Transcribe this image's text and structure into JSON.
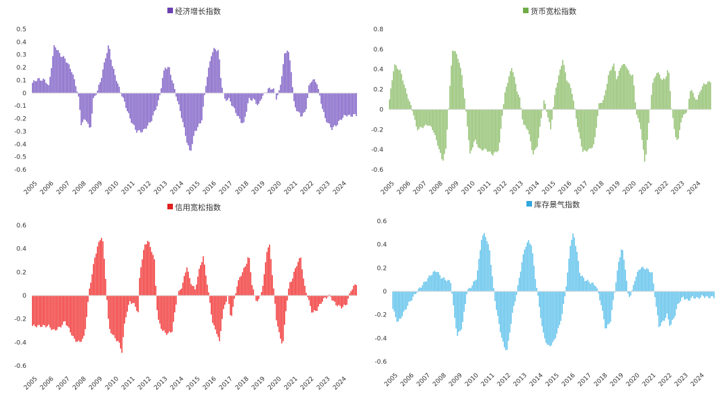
{
  "chart_data": [
    {
      "type": "bar",
      "title": "经济增长指数",
      "color": "#7B5BC4",
      "legend_marker_color": "#6A3FB0",
      "x_labels": [
        "2005",
        "2006",
        "2007",
        "2008",
        "2009",
        "2010",
        "2011",
        "2012",
        "2013",
        "2014",
        "2015",
        "2016",
        "2017",
        "2018",
        "2019",
        "2020",
        "2021",
        "2022",
        "2023",
        "2024"
      ],
      "ylim": [
        -0.6,
        0.5
      ],
      "yticks": [
        "0.5",
        "0.4",
        "0.3",
        "0.2",
        "0.1",
        "0",
        "-0.1",
        "-0.2",
        "-0.3",
        "-0.4",
        "-0.5",
        "-0.6"
      ],
      "x_range": [
        2005.0,
        2024.9
      ],
      "points": [
        [
          2005.0,
          0.08
        ],
        [
          2005.3,
          0.11
        ],
        [
          2005.8,
          0.1
        ],
        [
          2006.0,
          0.05
        ],
        [
          2006.35,
          0.38
        ],
        [
          2006.7,
          0.3
        ],
        [
          2007.0,
          0.27
        ],
        [
          2007.4,
          0.18
        ],
        [
          2007.7,
          0.05
        ],
        [
          2007.85,
          -0.05
        ],
        [
          2008.0,
          -0.24
        ],
        [
          2008.3,
          -0.2
        ],
        [
          2008.55,
          -0.3
        ],
        [
          2008.75,
          -0.05
        ],
        [
          2009.0,
          0.02
        ],
        [
          2009.2,
          0.1
        ],
        [
          2009.5,
          0.28
        ],
        [
          2009.7,
          0.38
        ],
        [
          2009.9,
          0.22
        ],
        [
          2010.3,
          0.05
        ],
        [
          2010.6,
          -0.05
        ],
        [
          2011.0,
          -0.2
        ],
        [
          2011.4,
          -0.3
        ],
        [
          2011.8,
          -0.3
        ],
        [
          2012.3,
          -0.22
        ],
        [
          2012.8,
          -0.05
        ],
        [
          2013.0,
          0.12
        ],
        [
          2013.15,
          0.2
        ],
        [
          2013.4,
          0.2
        ],
        [
          2013.7,
          0.05
        ],
        [
          2013.9,
          -0.05
        ],
        [
          2014.2,
          -0.2
        ],
        [
          2014.5,
          -0.38
        ],
        [
          2014.7,
          -0.47
        ],
        [
          2015.0,
          -0.3
        ],
        [
          2015.4,
          -0.22
        ],
        [
          2015.7,
          0.1
        ],
        [
          2016.0,
          0.3
        ],
        [
          2016.2,
          0.35
        ],
        [
          2016.45,
          0.33
        ],
        [
          2016.6,
          0.1
        ],
        [
          2016.8,
          -0.05
        ],
        [
          2017.1,
          -0.05
        ],
        [
          2017.5,
          -0.15
        ],
        [
          2017.8,
          -0.22
        ],
        [
          2018.0,
          -0.24
        ],
        [
          2018.3,
          -0.05
        ],
        [
          2018.6,
          -0.05
        ],
        [
          2018.9,
          -0.1
        ],
        [
          2019.1,
          -0.03
        ],
        [
          2019.5,
          0.03
        ],
        [
          2019.8,
          0.04
        ],
        [
          2020.0,
          -0.04
        ],
        [
          2020.2,
          0.02
        ],
        [
          2020.5,
          0.3
        ],
        [
          2020.7,
          0.35
        ],
        [
          2020.9,
          0.2
        ],
        [
          2021.1,
          -0.1
        ],
        [
          2021.5,
          -0.18
        ],
        [
          2021.8,
          -0.15
        ],
        [
          2022.0,
          0.05
        ],
        [
          2022.2,
          0.11
        ],
        [
          2022.5,
          0.08
        ],
        [
          2022.7,
          -0.05
        ],
        [
          2023.0,
          -0.2
        ],
        [
          2023.4,
          -0.28
        ],
        [
          2023.7,
          -0.25
        ],
        [
          2024.0,
          -0.2
        ],
        [
          2024.3,
          -0.17
        ],
        [
          2024.5,
          -0.18
        ],
        [
          2024.9,
          -0.17
        ]
      ]
    },
    {
      "type": "bar",
      "title": "货币宽松指数",
      "color": "#8EBE6B",
      "legend_marker_color": "#70AD47",
      "x_labels": [
        "2005",
        "2006",
        "2007",
        "2008",
        "2009",
        "2010",
        "2011",
        "2012",
        "2013",
        "2014",
        "2015",
        "2016",
        "2017",
        "2018",
        "2019",
        "2020",
        "2021",
        "2022",
        "2023",
        "2024"
      ],
      "ylim": [
        -0.6,
        0.8
      ],
      "yticks": [
        "0.8",
        "0.6",
        "0.4",
        "0.2",
        "0",
        "-0.2",
        "-0.4",
        "-0.6"
      ],
      "x_range": [
        2005.0,
        2024.9
      ],
      "points": [
        [
          2005.0,
          0.1
        ],
        [
          2005.3,
          0.45
        ],
        [
          2005.7,
          0.38
        ],
        [
          2006.0,
          0.2
        ],
        [
          2006.3,
          0.05
        ],
        [
          2006.5,
          -0.05
        ],
        [
          2006.7,
          -0.2
        ],
        [
          2007.0,
          -0.18
        ],
        [
          2007.4,
          -0.15
        ],
        [
          2007.7,
          -0.2
        ],
        [
          2008.0,
          -0.35
        ],
        [
          2008.3,
          -0.52
        ],
        [
          2008.5,
          -0.4
        ],
        [
          2008.7,
          0.1
        ],
        [
          2008.9,
          0.6
        ],
        [
          2009.2,
          0.55
        ],
        [
          2009.5,
          0.35
        ],
        [
          2009.8,
          -0.1
        ],
        [
          2010.0,
          -0.45
        ],
        [
          2010.3,
          -0.3
        ],
        [
          2010.6,
          -0.4
        ],
        [
          2011.0,
          -0.4
        ],
        [
          2011.4,
          -0.45
        ],
        [
          2011.8,
          -0.4
        ],
        [
          2012.0,
          -0.05
        ],
        [
          2012.2,
          0.2
        ],
        [
          2012.6,
          0.43
        ],
        [
          2012.9,
          0.2
        ],
        [
          2013.1,
          0.1
        ],
        [
          2013.3,
          -0.15
        ],
        [
          2013.6,
          -0.2
        ],
        [
          2013.9,
          -0.45
        ],
        [
          2014.2,
          -0.35
        ],
        [
          2014.4,
          -0.1
        ],
        [
          2014.6,
          0.1
        ],
        [
          2014.8,
          -0.05
        ],
        [
          2015.0,
          -0.2
        ],
        [
          2015.3,
          0.2
        ],
        [
          2015.6,
          0.4
        ],
        [
          2015.75,
          0.5
        ],
        [
          2016.0,
          0.3
        ],
        [
          2016.3,
          0.2
        ],
        [
          2016.5,
          0.0
        ],
        [
          2016.7,
          -0.2
        ],
        [
          2017.0,
          -0.42
        ],
        [
          2017.4,
          -0.4
        ],
        [
          2017.7,
          -0.35
        ],
        [
          2018.0,
          0.05
        ],
        [
          2018.3,
          0.1
        ],
        [
          2018.6,
          0.35
        ],
        [
          2018.9,
          0.46
        ],
        [
          2019.1,
          0.3
        ],
        [
          2019.4,
          0.45
        ],
        [
          2019.7,
          0.44
        ],
        [
          2019.9,
          0.35
        ],
        [
          2020.1,
          0.35
        ],
        [
          2020.3,
          -0.02
        ],
        [
          2020.6,
          -0.2
        ],
        [
          2020.85,
          -0.55
        ],
        [
          2021.0,
          -0.3
        ],
        [
          2021.3,
          0.25
        ],
        [
          2021.6,
          0.38
        ],
        [
          2021.9,
          0.3
        ],
        [
          2022.1,
          0.3
        ],
        [
          2022.3,
          0.42
        ],
        [
          2022.5,
          0.02
        ],
        [
          2022.7,
          -0.25
        ],
        [
          2022.9,
          -0.32
        ],
        [
          2023.1,
          -0.1
        ],
        [
          2023.3,
          -0.05
        ],
        [
          2023.5,
          0.0
        ],
        [
          2023.7,
          0.23
        ],
        [
          2023.9,
          0.12
        ],
        [
          2024.1,
          0.1
        ],
        [
          2024.3,
          0.2
        ],
        [
          2024.5,
          0.25
        ],
        [
          2024.9,
          0.28
        ]
      ]
    },
    {
      "type": "bar",
      "title": "信用宽松指数",
      "color": "#F03030",
      "legend_marker_color": "#E01F1F",
      "x_labels": [
        "2005",
        "2006",
        "2007",
        "2008",
        "2009",
        "2010",
        "2011",
        "2012",
        "2013",
        "2014",
        "2015",
        "2016",
        "2017",
        "2018",
        "2019",
        "2020",
        "2021",
        "2022",
        "2023",
        "2024"
      ],
      "ylim": [
        -0.6,
        0.6
      ],
      "yticks": [
        "0.6",
        "0.4",
        "0.2",
        "0",
        "-0.2",
        "-0.4",
        "-0.6"
      ],
      "x_range": [
        2005.0,
        2024.9
      ],
      "points": [
        [
          2006.0,
          -0.26
        ],
        [
          2006.3,
          -0.3
        ],
        [
          2006.7,
          -0.27
        ],
        [
          2007.0,
          -0.22
        ],
        [
          2007.3,
          -0.3
        ],
        [
          2007.6,
          -0.38
        ],
        [
          2007.9,
          -0.4
        ],
        [
          2008.2,
          -0.35
        ],
        [
          2008.5,
          0.05
        ],
        [
          2008.8,
          0.3
        ],
        [
          2009.0,
          0.42
        ],
        [
          2009.3,
          0.52
        ],
        [
          2009.5,
          0.15
        ],
        [
          2009.7,
          -0.28
        ],
        [
          2010.0,
          -0.35
        ],
        [
          2010.3,
          -0.4
        ],
        [
          2010.5,
          -0.48
        ],
        [
          2010.7,
          -0.2
        ],
        [
          2011.0,
          -0.05
        ],
        [
          2011.3,
          -0.08
        ],
        [
          2011.5,
          -0.15
        ],
        [
          2011.6,
          0.2
        ],
        [
          2011.9,
          0.43
        ],
        [
          2012.1,
          0.47
        ],
        [
          2012.3,
          0.4
        ],
        [
          2012.5,
          0.3
        ],
        [
          2012.7,
          -0.2
        ],
        [
          2013.0,
          -0.3
        ],
        [
          2013.3,
          -0.33
        ],
        [
          2013.6,
          -0.3
        ],
        [
          2013.9,
          0.0
        ],
        [
          2014.2,
          0.08
        ],
        [
          2014.5,
          0.25
        ],
        [
          2014.7,
          0.12
        ],
        [
          2015.0,
          0.05
        ],
        [
          2015.3,
          0.25
        ],
        [
          2015.5,
          0.33
        ],
        [
          2015.7,
          0.15
        ],
        [
          2015.9,
          -0.05
        ],
        [
          2016.1,
          -0.25
        ],
        [
          2016.3,
          -0.3
        ],
        [
          2016.5,
          -0.4
        ],
        [
          2016.7,
          -0.15
        ],
        [
          2017.0,
          0.0
        ],
        [
          2017.2,
          -0.2
        ],
        [
          2017.4,
          -0.05
        ],
        [
          2017.6,
          0.1
        ],
        [
          2017.9,
          0.2
        ],
        [
          2018.1,
          0.25
        ],
        [
          2018.3,
          0.35
        ],
        [
          2018.5,
          0.1
        ],
        [
          2018.7,
          -0.03
        ],
        [
          2018.9,
          -0.05
        ],
        [
          2019.2,
          0.1
        ],
        [
          2019.4,
          0.38
        ],
        [
          2019.6,
          0.43
        ],
        [
          2019.8,
          0.1
        ],
        [
          2020.0,
          -0.2
        ],
        [
          2020.2,
          -0.35
        ],
        [
          2020.4,
          -0.42
        ],
        [
          2020.6,
          -0.1
        ],
        [
          2020.8,
          0.1
        ],
        [
          2021.0,
          0.15
        ],
        [
          2021.2,
          0.25
        ],
        [
          2021.5,
          0.33
        ],
        [
          2021.7,
          0.1
        ],
        [
          2022.0,
          -0.05
        ],
        [
          2022.2,
          -0.15
        ],
        [
          2022.5,
          -0.12
        ],
        [
          2022.8,
          -0.05
        ],
        [
          2023.0,
          -0.02
        ],
        [
          2023.3,
          0.0
        ],
        [
          2023.5,
          -0.05
        ],
        [
          2023.7,
          -0.08
        ],
        [
          2024.0,
          -0.1
        ],
        [
          2024.3,
          -0.08
        ],
        [
          2024.6,
          0.05
        ],
        [
          2024.9,
          0.1
        ]
      ]
    },
    {
      "type": "bar",
      "title": "库存景气指数",
      "color": "#5BC0EB",
      "legend_marker_color": "#30A7DD",
      "x_labels": [
        "2005",
        "2006",
        "2007",
        "2008",
        "2009",
        "2010",
        "2011",
        "2012",
        "2013",
        "2014",
        "2015",
        "2016",
        "2017",
        "2018",
        "2019",
        "2020",
        "2021",
        "2022",
        "2023",
        "2024"
      ],
      "ylim": [
        -0.6,
        0.6
      ],
      "yticks": [
        "0.6",
        "0.4",
        "0.2",
        "0",
        "-0.2",
        "-0.4",
        "-0.6"
      ],
      "x_range": [
        2005.0,
        2024.9
      ],
      "points": [
        [
          2005.0,
          -0.15
        ],
        [
          2005.3,
          -0.27
        ],
        [
          2005.6,
          -0.2
        ],
        [
          2006.0,
          -0.1
        ],
        [
          2006.5,
          0.0
        ],
        [
          2006.8,
          0.05
        ],
        [
          2007.1,
          0.1
        ],
        [
          2007.4,
          0.15
        ],
        [
          2007.7,
          0.18
        ],
        [
          2008.0,
          0.12
        ],
        [
          2008.3,
          0.1
        ],
        [
          2008.6,
          0.08
        ],
        [
          2008.8,
          -0.2
        ],
        [
          2009.0,
          -0.38
        ],
        [
          2009.3,
          -0.3
        ],
        [
          2009.6,
          0.0
        ],
        [
          2009.9,
          0.05
        ],
        [
          2010.2,
          0.12
        ],
        [
          2010.5,
          0.45
        ],
        [
          2010.7,
          0.5
        ],
        [
          2011.0,
          0.35
        ],
        [
          2011.3,
          -0.05
        ],
        [
          2011.6,
          -0.3
        ],
        [
          2011.9,
          -0.48
        ],
        [
          2012.1,
          -0.5
        ],
        [
          2012.4,
          -0.2
        ],
        [
          2012.7,
          0.0
        ],
        [
          2013.0,
          0.25
        ],
        [
          2013.2,
          0.38
        ],
        [
          2013.4,
          0.43
        ],
        [
          2013.6,
          0.4
        ],
        [
          2013.8,
          0.15
        ],
        [
          2014.0,
          -0.05
        ],
        [
          2014.3,
          -0.35
        ],
        [
          2014.6,
          -0.47
        ],
        [
          2014.9,
          -0.45
        ],
        [
          2015.2,
          -0.35
        ],
        [
          2015.5,
          -0.2
        ],
        [
          2015.8,
          0.1
        ],
        [
          2016.0,
          0.4
        ],
        [
          2016.2,
          0.5
        ],
        [
          2016.4,
          0.35
        ],
        [
          2016.6,
          0.15
        ],
        [
          2016.9,
          0.1
        ],
        [
          2017.2,
          0.08
        ],
        [
          2017.6,
          0.05
        ],
        [
          2017.9,
          -0.1
        ],
        [
          2018.2,
          -0.33
        ],
        [
          2018.5,
          -0.25
        ],
        [
          2018.8,
          0.05
        ],
        [
          2019.0,
          0.25
        ],
        [
          2019.2,
          0.38
        ],
        [
          2019.4,
          0.22
        ],
        [
          2019.6,
          -0.05
        ],
        [
          2019.8,
          -0.02
        ],
        [
          2020.0,
          0.1
        ],
        [
          2020.3,
          0.2
        ],
        [
          2020.6,
          0.2
        ],
        [
          2020.9,
          0.18
        ],
        [
          2021.1,
          0.15
        ],
        [
          2021.3,
          -0.1
        ],
        [
          2021.5,
          -0.3
        ],
        [
          2021.8,
          -0.25
        ],
        [
          2022.0,
          -0.2
        ],
        [
          2022.2,
          -0.3
        ],
        [
          2022.5,
          -0.2
        ],
        [
          2022.7,
          -0.1
        ],
        [
          2023.0,
          -0.05
        ],
        [
          2023.3,
          -0.08
        ],
        [
          2023.6,
          -0.05
        ],
        [
          2023.9,
          -0.06
        ],
        [
          2024.2,
          -0.04
        ],
        [
          2024.5,
          -0.05
        ],
        [
          2024.9,
          -0.05
        ]
      ]
    }
  ]
}
